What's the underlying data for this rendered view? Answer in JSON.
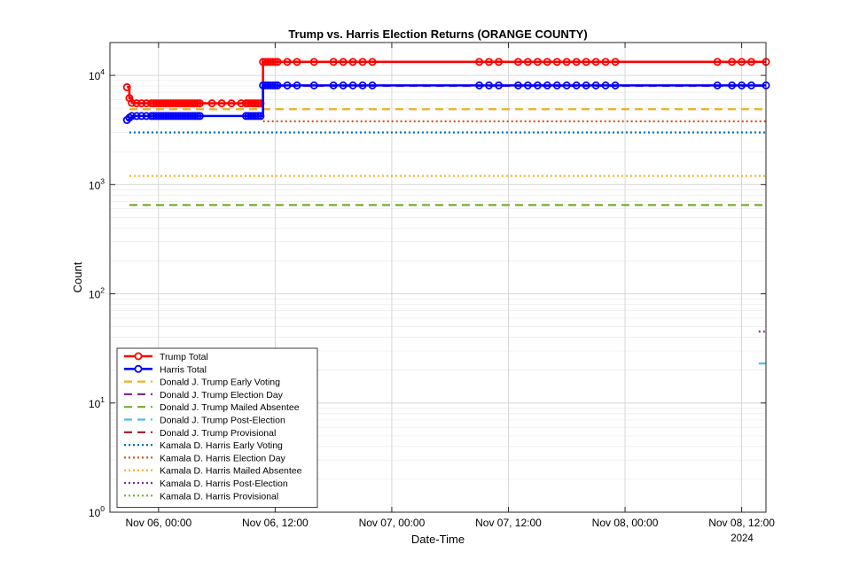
{
  "chart_data": {
    "type": "line",
    "title": "Trump vs. Harris Election Returns (ORANGE COUNTY)",
    "xlabel": "Date-Time",
    "ylabel": "Count",
    "yscale": "log",
    "ylim": [
      1,
      20000
    ],
    "xlim": [
      "2024-11-05 19:00",
      "2024-11-08 14:30"
    ],
    "x_ticks": [
      {
        "t": "2024-11-06 00:00",
        "label": "Nov 06, 00:00"
      },
      {
        "t": "2024-11-06 12:00",
        "label": "Nov 06, 12:00"
      },
      {
        "t": "2024-11-07 00:00",
        "label": "Nov 07, 00:00"
      },
      {
        "t": "2024-11-07 12:00",
        "label": "Nov 07, 12:00"
      },
      {
        "t": "2024-11-08 00:00",
        "label": "Nov 08, 00:00"
      },
      {
        "t": "2024-11-08 12:00",
        "label": "Nov 08, 12:00"
      }
    ],
    "x_secondary_label": "2024",
    "y_ticks": [
      {
        "exp": 0,
        "base": "10",
        "sup": "0"
      },
      {
        "exp": 1,
        "base": "10",
        "sup": "1"
      },
      {
        "exp": 2,
        "base": "10",
        "sup": "2"
      },
      {
        "exp": 3,
        "base": "10",
        "sup": "3"
      },
      {
        "exp": 4,
        "base": "10",
        "sup": "4"
      }
    ],
    "grid": true,
    "legend_position": "bottom-left",
    "series": [
      {
        "name": "Trump Total",
        "color": "#ff0000",
        "style": "solid-marker",
        "points": [
          [
            "2024-11-05 20:45",
            7800
          ],
          [
            "2024-11-05 21:00",
            6200
          ],
          [
            "2024-11-05 21:15",
            5600
          ],
          [
            "2024-11-05 21:45",
            5550
          ],
          [
            "2024-11-05 22:15",
            5550
          ],
          [
            "2024-11-05 22:45",
            5550
          ],
          [
            "2024-11-05 23:15",
            5550
          ],
          [
            "2024-11-05 23:30",
            5550
          ],
          [
            "2024-11-05 23:45",
            5550
          ],
          [
            "2024-11-06 00:00",
            5550
          ],
          [
            "2024-11-06 00:15",
            5550
          ],
          [
            "2024-11-06 00:30",
            5550
          ],
          [
            "2024-11-06 00:45",
            5550
          ],
          [
            "2024-11-06 01:00",
            5550
          ],
          [
            "2024-11-06 01:15",
            5550
          ],
          [
            "2024-11-06 01:30",
            5550
          ],
          [
            "2024-11-06 01:45",
            5550
          ],
          [
            "2024-11-06 02:00",
            5550
          ],
          [
            "2024-11-06 02:15",
            5550
          ],
          [
            "2024-11-06 02:30",
            5550
          ],
          [
            "2024-11-06 02:45",
            5550
          ],
          [
            "2024-11-06 03:00",
            5550
          ],
          [
            "2024-11-06 03:15",
            5550
          ],
          [
            "2024-11-06 03:30",
            5550
          ],
          [
            "2024-11-06 03:45",
            5550
          ],
          [
            "2024-11-06 04:00",
            5550
          ],
          [
            "2024-11-06 04:15",
            5550
          ],
          [
            "2024-11-06 05:30",
            5550
          ],
          [
            "2024-11-06 06:30",
            5550
          ],
          [
            "2024-11-06 07:30",
            5550
          ],
          [
            "2024-11-06 08:30",
            5550
          ],
          [
            "2024-11-06 09:00",
            5550
          ],
          [
            "2024-11-06 09:15",
            5550
          ],
          [
            "2024-11-06 09:30",
            5550
          ],
          [
            "2024-11-06 09:45",
            5550
          ],
          [
            "2024-11-06 10:00",
            5550
          ],
          [
            "2024-11-06 10:15",
            5550
          ],
          [
            "2024-11-06 10:30",
            5550
          ],
          [
            "2024-11-06 10:45",
            13300
          ],
          [
            "2024-11-06 11:00",
            13300
          ],
          [
            "2024-11-06 11:15",
            13300
          ],
          [
            "2024-11-06 11:30",
            13300
          ],
          [
            "2024-11-06 11:45",
            13300
          ],
          [
            "2024-11-06 12:00",
            13300
          ],
          [
            "2024-11-06 12:15",
            13300
          ],
          [
            "2024-11-06 13:15",
            13300
          ],
          [
            "2024-11-06 14:15",
            13300
          ],
          [
            "2024-11-06 16:00",
            13300
          ],
          [
            "2024-11-06 18:00",
            13300
          ],
          [
            "2024-11-06 19:00",
            13300
          ],
          [
            "2024-11-06 20:00",
            13300
          ],
          [
            "2024-11-06 21:00",
            13300
          ],
          [
            "2024-11-06 22:00",
            13300
          ],
          [
            "2024-11-07 09:00",
            13300
          ],
          [
            "2024-11-07 10:00",
            13300
          ],
          [
            "2024-11-07 11:00",
            13300
          ],
          [
            "2024-11-07 13:00",
            13300
          ],
          [
            "2024-11-07 14:00",
            13300
          ],
          [
            "2024-11-07 15:00",
            13300
          ],
          [
            "2024-11-07 16:00",
            13300
          ],
          [
            "2024-11-07 17:00",
            13300
          ],
          [
            "2024-11-07 18:00",
            13300
          ],
          [
            "2024-11-07 19:00",
            13300
          ],
          [
            "2024-11-07 20:00",
            13300
          ],
          [
            "2024-11-07 21:00",
            13300
          ],
          [
            "2024-11-07 22:00",
            13300
          ],
          [
            "2024-11-07 23:00",
            13300
          ],
          [
            "2024-11-08 09:30",
            13300
          ],
          [
            "2024-11-08 11:00",
            13300
          ],
          [
            "2024-11-08 12:00",
            13300
          ],
          [
            "2024-11-08 13:00",
            13300
          ],
          [
            "2024-11-08 14:30",
            13300
          ]
        ]
      },
      {
        "name": "Harris Total",
        "color": "#0000ff",
        "style": "solid-marker",
        "points": [
          [
            "2024-11-05 20:45",
            3900
          ],
          [
            "2024-11-05 21:00",
            4100
          ],
          [
            "2024-11-05 21:15",
            4250
          ],
          [
            "2024-11-05 21:45",
            4250
          ],
          [
            "2024-11-05 22:15",
            4250
          ],
          [
            "2024-11-05 22:45",
            4250
          ],
          [
            "2024-11-05 23:15",
            4250
          ],
          [
            "2024-11-05 23:30",
            4250
          ],
          [
            "2024-11-05 23:45",
            4250
          ],
          [
            "2024-11-06 00:00",
            4250
          ],
          [
            "2024-11-06 00:15",
            4250
          ],
          [
            "2024-11-06 00:30",
            4250
          ],
          [
            "2024-11-06 00:45",
            4250
          ],
          [
            "2024-11-06 01:00",
            4250
          ],
          [
            "2024-11-06 01:15",
            4250
          ],
          [
            "2024-11-06 01:30",
            4250
          ],
          [
            "2024-11-06 01:45",
            4250
          ],
          [
            "2024-11-06 02:00",
            4250
          ],
          [
            "2024-11-06 02:15",
            4250
          ],
          [
            "2024-11-06 02:30",
            4250
          ],
          [
            "2024-11-06 02:45",
            4250
          ],
          [
            "2024-11-06 03:00",
            4250
          ],
          [
            "2024-11-06 03:15",
            4250
          ],
          [
            "2024-11-06 03:30",
            4250
          ],
          [
            "2024-11-06 03:45",
            4250
          ],
          [
            "2024-11-06 04:00",
            4250
          ],
          [
            "2024-11-06 04:15",
            4250
          ],
          [
            "2024-11-06 09:00",
            4250
          ],
          [
            "2024-11-06 09:15",
            4250
          ],
          [
            "2024-11-06 09:30",
            4250
          ],
          [
            "2024-11-06 09:45",
            4250
          ],
          [
            "2024-11-06 10:00",
            4250
          ],
          [
            "2024-11-06 10:15",
            4250
          ],
          [
            "2024-11-06 10:30",
            4250
          ],
          [
            "2024-11-06 10:45",
            8100
          ],
          [
            "2024-11-06 11:00",
            8100
          ],
          [
            "2024-11-06 11:15",
            8100
          ],
          [
            "2024-11-06 11:30",
            8100
          ],
          [
            "2024-11-06 11:45",
            8100
          ],
          [
            "2024-11-06 12:00",
            8100
          ],
          [
            "2024-11-06 12:15",
            8100
          ],
          [
            "2024-11-06 13:15",
            8100
          ],
          [
            "2024-11-06 14:15",
            8100
          ],
          [
            "2024-11-06 16:00",
            8100
          ],
          [
            "2024-11-06 18:00",
            8100
          ],
          [
            "2024-11-06 19:00",
            8100
          ],
          [
            "2024-11-06 20:00",
            8100
          ],
          [
            "2024-11-06 21:00",
            8100
          ],
          [
            "2024-11-06 22:00",
            8100
          ],
          [
            "2024-11-07 09:00",
            8100
          ],
          [
            "2024-11-07 10:00",
            8100
          ],
          [
            "2024-11-07 11:00",
            8100
          ],
          [
            "2024-11-07 13:00",
            8100
          ],
          [
            "2024-11-07 14:00",
            8100
          ],
          [
            "2024-11-07 15:00",
            8100
          ],
          [
            "2024-11-07 16:00",
            8100
          ],
          [
            "2024-11-07 17:00",
            8100
          ],
          [
            "2024-11-07 18:00",
            8100
          ],
          [
            "2024-11-07 19:00",
            8100
          ],
          [
            "2024-11-07 20:00",
            8100
          ],
          [
            "2024-11-07 21:00",
            8100
          ],
          [
            "2024-11-07 22:00",
            8100
          ],
          [
            "2024-11-07 23:00",
            8100
          ],
          [
            "2024-11-08 09:30",
            8100
          ],
          [
            "2024-11-08 11:00",
            8100
          ],
          [
            "2024-11-08 12:00",
            8100
          ],
          [
            "2024-11-08 13:00",
            8100
          ],
          [
            "2024-11-08 14:30",
            8100
          ]
        ]
      },
      {
        "name": "Donald J. Trump Early Voting",
        "color": "#edb120",
        "style": "dashed",
        "points": [
          [
            "2024-11-05 21:00",
            4900
          ],
          [
            "2024-11-08 14:30",
            4900
          ]
        ]
      },
      {
        "name": "Donald J. Trump Election Day",
        "color": "#7e2f8e",
        "style": "dashed",
        "points": [
          [
            "2024-11-06 10:45",
            8000
          ],
          [
            "2024-11-08 14:30",
            8000
          ]
        ]
      },
      {
        "name": "Donald J. Trump Mailed Absentee",
        "color": "#77ac30",
        "style": "dashed",
        "points": [
          [
            "2024-11-05 21:00",
            650
          ],
          [
            "2024-11-08 14:30",
            650
          ]
        ]
      },
      {
        "name": "Donald J. Trump Post-Election",
        "color": "#4dbeee",
        "style": "dashed",
        "points": [
          [
            "2024-11-08 13:45",
            23
          ],
          [
            "2024-11-08 14:30",
            23
          ]
        ]
      },
      {
        "name": "Donald J. Trump Provisional",
        "color": "#a2142f",
        "style": "dashed",
        "points": []
      },
      {
        "name": "Kamala D. Harris Early Voting",
        "color": "#0072bd",
        "style": "dotted",
        "points": [
          [
            "2024-11-05 21:00",
            3000
          ],
          [
            "2024-11-08 14:30",
            3000
          ]
        ]
      },
      {
        "name": "Kamala D. Harris Election Day",
        "color": "#d95319",
        "style": "dotted",
        "points": [
          [
            "2024-11-06 10:45",
            3800
          ],
          [
            "2024-11-08 14:30",
            3800
          ]
        ]
      },
      {
        "name": "Kamala D. Harris Mailed Absentee",
        "color": "#edb120",
        "style": "dotted",
        "points": [
          [
            "2024-11-05 21:00",
            1200
          ],
          [
            "2024-11-08 14:30",
            1200
          ]
        ]
      },
      {
        "name": "Kamala D. Harris Post-Election",
        "color": "#7e2f8e",
        "style": "dotted",
        "points": [
          [
            "2024-11-08 13:45",
            45
          ],
          [
            "2024-11-08 14:30",
            45
          ]
        ]
      },
      {
        "name": "Kamala D. Harris Provisional",
        "color": "#77ac30",
        "style": "dotted",
        "points": []
      }
    ]
  }
}
